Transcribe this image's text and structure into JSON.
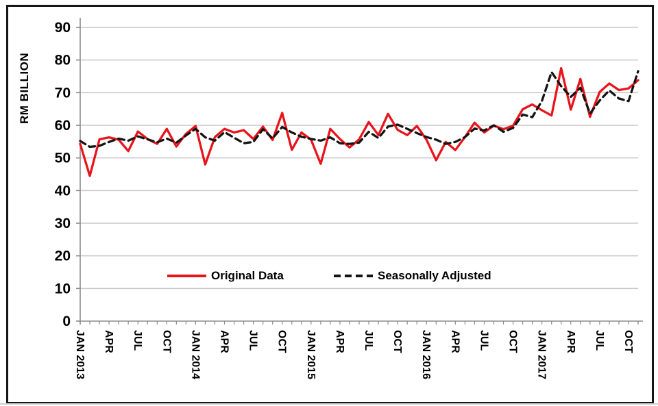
{
  "figure": {
    "y_axis_title": "RM BILLION"
  },
  "legend": {
    "original_label": "Original Data",
    "seasonally_adjusted_label": "Seasonally Adjusted"
  },
  "colors": {
    "original": "#e8141b",
    "seasonally_adjusted": "#141414",
    "gridline": "#c8c8c8",
    "axis": "#8c8c8c",
    "frame": "#161616",
    "text": "#000000"
  },
  "chart_data": {
    "type": "line",
    "title": "",
    "ylabel": "RM BILLION",
    "xlabel": "",
    "ylim": [
      0,
      90
    ],
    "y_ticks": [
      0,
      10,
      20,
      30,
      40,
      50,
      60,
      70,
      80,
      90
    ],
    "grid": "horizontal",
    "legend_position": "inside-bottom-center",
    "x_start": "JAN 2013",
    "x_end": "NOV 2017",
    "x_frequency": "monthly",
    "n_points": 59,
    "x_tick_every_n_months": 3,
    "x_tick_labels": [
      "JAN 2013",
      "APR",
      "JUL",
      "OCT",
      "JAN 2014",
      "APR",
      "JUL",
      "OCT",
      "JAN 2015",
      "APR",
      "JUL",
      "OCT",
      "JAN 2016",
      "APR",
      "JUL",
      "OCT",
      "JAN 2017",
      "APR",
      "JUL",
      "OCT"
    ],
    "series": [
      {
        "name": "Original Data",
        "style": "solid",
        "color": "#e8141b",
        "values": [
          54.3,
          44.5,
          55.7,
          56.3,
          55.6,
          52.1,
          58.1,
          55.8,
          54.3,
          58.9,
          53.5,
          57.4,
          59.8,
          48.0,
          56.4,
          58.9,
          57.8,
          58.5,
          55.8,
          59.6,
          55.5,
          63.8,
          52.5,
          57.8,
          55.6,
          48.2,
          58.9,
          55.8,
          53.2,
          55.7,
          61.0,
          57.0,
          63.5,
          58.6,
          57.0,
          59.8,
          55.6,
          49.3,
          54.9,
          52.4,
          56.4,
          60.8,
          57.8,
          59.9,
          58.8,
          59.9,
          64.9,
          66.4,
          64.6,
          63.0,
          77.5,
          64.8,
          74.2,
          62.6,
          70.2,
          72.8,
          70.8,
          71.3,
          73.8
        ]
      },
      {
        "name": "Seasonally Adjusted",
        "style": "dashed",
        "color": "#141414",
        "values": [
          55.2,
          53.4,
          53.7,
          54.9,
          55.9,
          55.3,
          56.6,
          55.7,
          54.8,
          55.9,
          54.7,
          56.9,
          58.9,
          56.3,
          55.3,
          57.9,
          56.2,
          54.5,
          54.9,
          58.8,
          56.0,
          59.5,
          57.8,
          56.5,
          55.8,
          55.3,
          56.3,
          54.5,
          54.3,
          54.7,
          58.0,
          56.1,
          59.6,
          60.2,
          58.9,
          57.6,
          56.4,
          55.6,
          54.3,
          54.9,
          56.4,
          59.0,
          58.4,
          60.0,
          58.0,
          59.2,
          63.3,
          62.5,
          67.5,
          76.3,
          72.0,
          68.7,
          71.5,
          63.6,
          67.6,
          70.7,
          68.2,
          67.4,
          76.6
        ]
      }
    ]
  }
}
